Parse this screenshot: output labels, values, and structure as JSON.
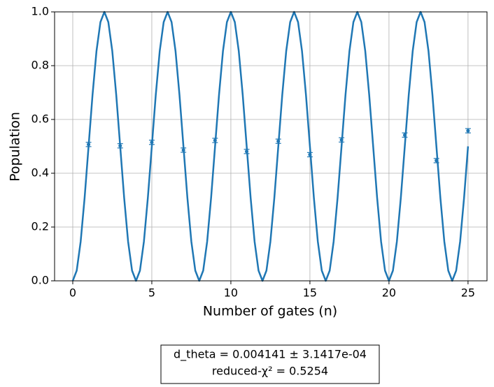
{
  "chart_data": {
    "type": "line",
    "xlabel": "Number of gates (n)",
    "ylabel": "Population",
    "series": [
      {
        "color": "#1f77b4",
        "x": [
          0,
          0.25,
          0.5,
          0.75,
          1,
          1.25,
          1.5,
          1.75,
          2,
          2.25,
          2.5,
          2.75,
          3,
          3.25,
          3.5,
          3.75,
          4,
          4.25,
          4.5,
          4.75,
          5,
          5.25,
          5.5,
          5.75,
          6,
          6.25,
          6.5,
          6.75,
          7,
          7.25,
          7.5,
          7.75,
          8,
          8.25,
          8.5,
          8.75,
          9,
          9.25,
          9.5,
          9.75,
          10,
          10.25,
          10.5,
          10.75,
          11,
          11.25,
          11.5,
          11.75,
          12,
          12.25,
          12.5,
          12.75,
          13,
          13.25,
          13.5,
          13.75,
          14,
          14.25,
          14.5,
          14.75,
          15,
          15.25,
          15.5,
          15.75,
          16,
          16.25,
          16.5,
          16.75,
          17,
          17.25,
          17.5,
          17.75,
          18,
          18.25,
          18.5,
          18.75,
          19,
          19.25,
          19.5,
          19.75,
          20,
          20.25,
          20.5,
          20.75,
          21,
          21.25,
          21.5,
          21.75,
          22,
          22.25,
          22.5,
          22.75,
          23,
          23.25,
          23.5,
          23.75,
          24,
          24.25,
          24.5,
          24.75,
          25
        ],
        "values": [
          0,
          0.038,
          0.146,
          0.309,
          0.5,
          0.691,
          0.854,
          0.962,
          1,
          0.962,
          0.854,
          0.691,
          0.5,
          0.309,
          0.146,
          0.038,
          0,
          0.038,
          0.146,
          0.309,
          0.5,
          0.691,
          0.854,
          0.962,
          1,
          0.962,
          0.854,
          0.691,
          0.5,
          0.309,
          0.146,
          0.038,
          0,
          0.038,
          0.146,
          0.309,
          0.5,
          0.691,
          0.854,
          0.962,
          1,
          0.962,
          0.854,
          0.691,
          0.5,
          0.309,
          0.146,
          0.038,
          0,
          0.038,
          0.146,
          0.309,
          0.5,
          0.691,
          0.854,
          0.962,
          1,
          0.962,
          0.854,
          0.691,
          0.5,
          0.309,
          0.146,
          0.038,
          0,
          0.038,
          0.146,
          0.309,
          0.5,
          0.691,
          0.854,
          0.962,
          1,
          0.962,
          0.854,
          0.691,
          0.5,
          0.309,
          0.146,
          0.038,
          0,
          0.038,
          0.146,
          0.309,
          0.5,
          0.691,
          0.854,
          0.962,
          1,
          0.962,
          0.854,
          0.691,
          0.5,
          0.309,
          0.146,
          0.038,
          0,
          0.038,
          0.146,
          0.309,
          0.5
        ]
      }
    ],
    "points": {
      "color": "#1f77b4",
      "x": [
        1,
        3,
        5,
        7,
        9,
        11,
        13,
        15,
        17,
        21,
        23,
        25
      ],
      "values": [
        0.507,
        0.502,
        0.515,
        0.486,
        0.522,
        0.481,
        0.519,
        0.469,
        0.524,
        0.542,
        0.447,
        0.558
      ],
      "errors": [
        0.008,
        0.008,
        0.008,
        0.008,
        0.008,
        0.008,
        0.008,
        0.008,
        0.008,
        0.008,
        0.008,
        0.008
      ]
    },
    "xlim": [
      -1.15,
      26.2
    ],
    "ylim": [
      0,
      1
    ],
    "xticks": [
      0,
      5,
      10,
      15,
      20,
      25
    ],
    "yticks": [
      {
        "value": 0,
        "label": "0.0"
      },
      0.2,
      0.4,
      0.6,
      0.8,
      {
        "value": 1,
        "label": "1.0"
      }
    ],
    "grid": true,
    "annotation": [
      "d_theta =   0.004141 ±  3.1417e-04",
      "reduced-χ² =  0.5254"
    ]
  }
}
